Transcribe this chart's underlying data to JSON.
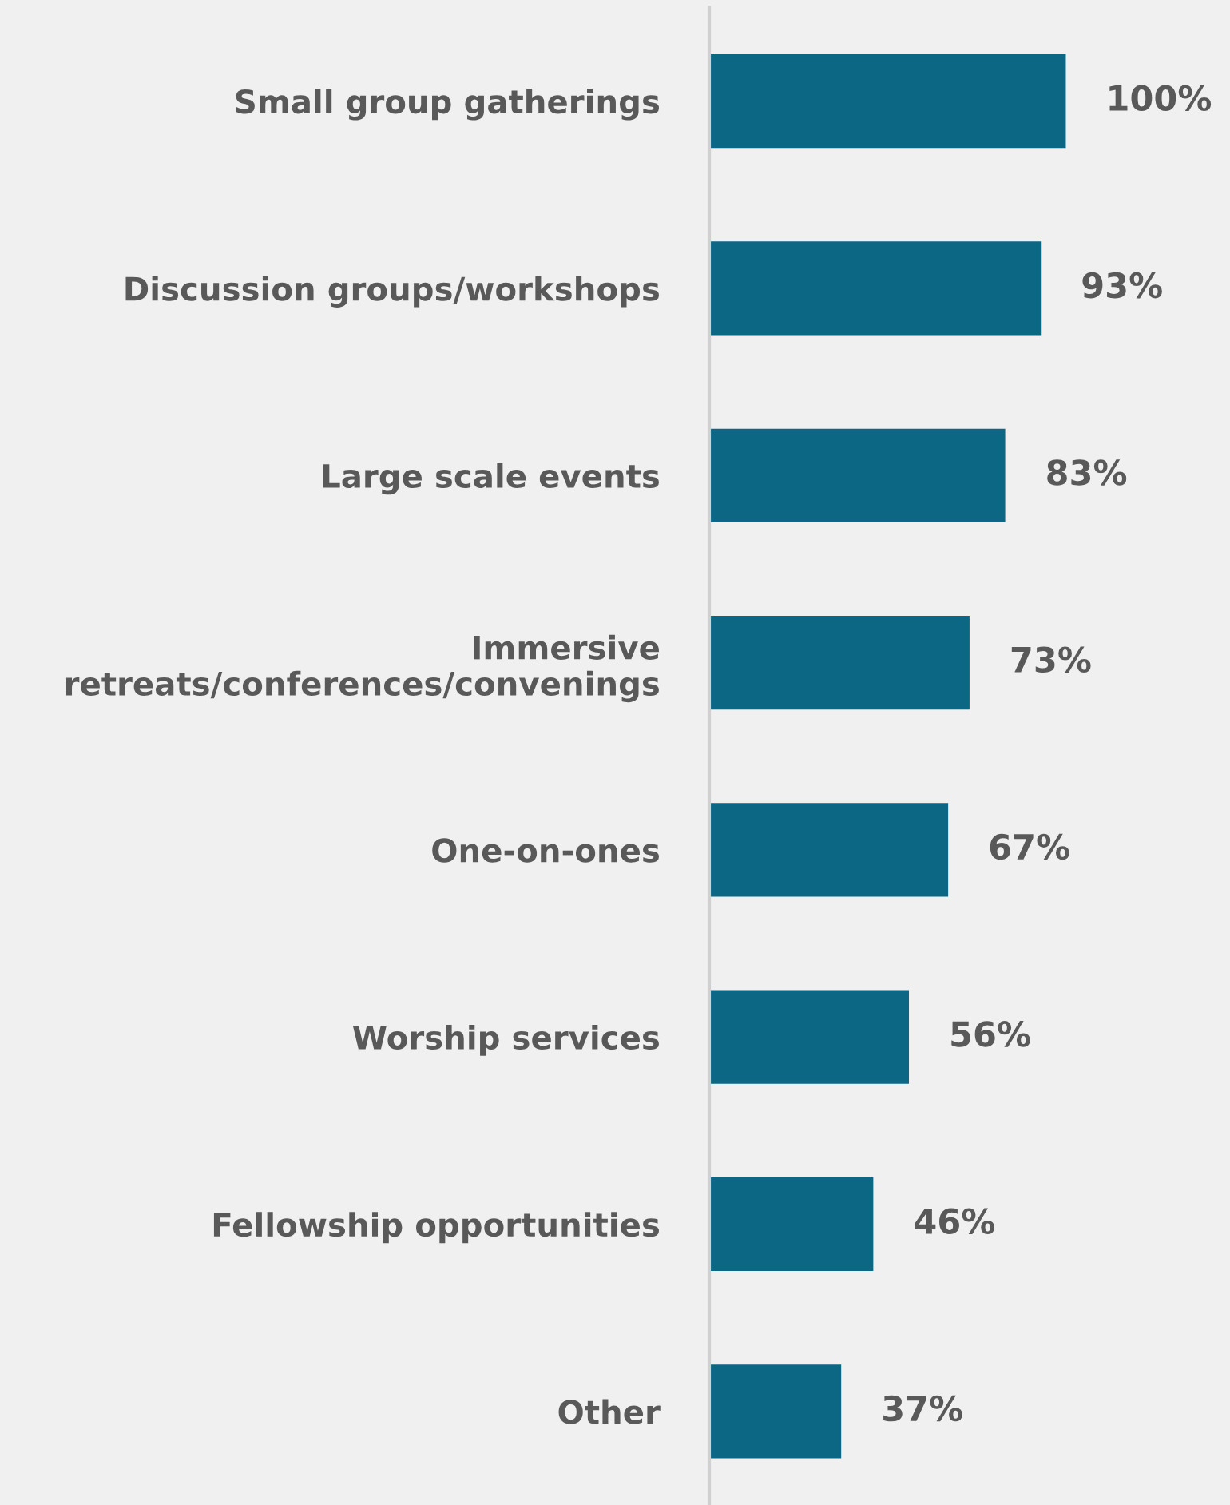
{
  "chart_data": {
    "type": "bar",
    "orientation": "horizontal",
    "categories": [
      "Small group gatherings",
      "Discussion groups/workshops",
      "Large scale events",
      "Immersive\nretreats/conferences/convenings",
      "One-on-ones",
      "Worship services",
      "Fellowship opportunities",
      "Other"
    ],
    "values": [
      100,
      93,
      83,
      73,
      67,
      56,
      46,
      37
    ],
    "value_labels": [
      "100%",
      "93%",
      "83%",
      "73%",
      "67%",
      "56%",
      "46%",
      "37%"
    ],
    "color": "#0b6784",
    "xlim": [
      0,
      145
    ],
    "tick_labels": "y",
    "grid": false,
    "legend": false
  }
}
